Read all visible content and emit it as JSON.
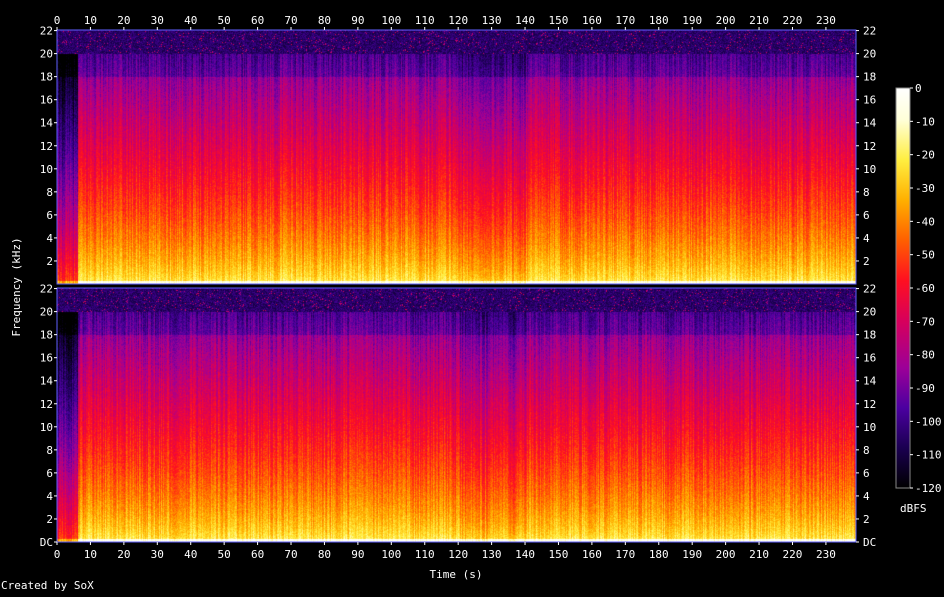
{
  "chart_data": {
    "type": "heatmap",
    "title": "",
    "xlabel": "Time (s)",
    "ylabel": "Frequency (kHz)",
    "x_ticks": [
      0,
      10,
      20,
      30,
      40,
      50,
      60,
      70,
      80,
      90,
      100,
      110,
      120,
      130,
      140,
      150,
      160,
      170,
      180,
      190,
      200,
      210,
      220,
      230
    ],
    "xlim": [
      0,
      239
    ],
    "channels": [
      {
        "y_tick_labels": [
          "2",
          "4",
          "6",
          "8",
          "10",
          "12",
          "14",
          "16",
          "18",
          "20",
          "22"
        ]
      },
      {
        "y_tick_labels": [
          "DC",
          "2",
          "4",
          "6",
          "8",
          "10",
          "12",
          "14",
          "16",
          "18",
          "20",
          "22"
        ]
      }
    ],
    "y_ticks": [
      0,
      2,
      4,
      6,
      8,
      10,
      12,
      14,
      16,
      18,
      20,
      22
    ],
    "ylim": [
      0,
      22.05
    ],
    "colorbar": {
      "label": "dBFS",
      "ticks": [
        "0",
        "-10",
        "-20",
        "-30",
        "-40",
        "-50",
        "-60",
        "-70",
        "-80",
        "-90",
        "-100",
        "-110",
        "-120"
      ],
      "range": [
        -120,
        0
      ]
    },
    "colors": [
      "#000000",
      "#1a0050",
      "#4b00a0",
      "#9c0098",
      "#d8005a",
      "#ff1020",
      "#ff6000",
      "#ffb000",
      "#ffee40",
      "#ffffd8",
      "#ffffff"
    ],
    "lowpass_cutoff_khz": 20.0
  },
  "footer": {
    "credit": "Created by SoX"
  }
}
